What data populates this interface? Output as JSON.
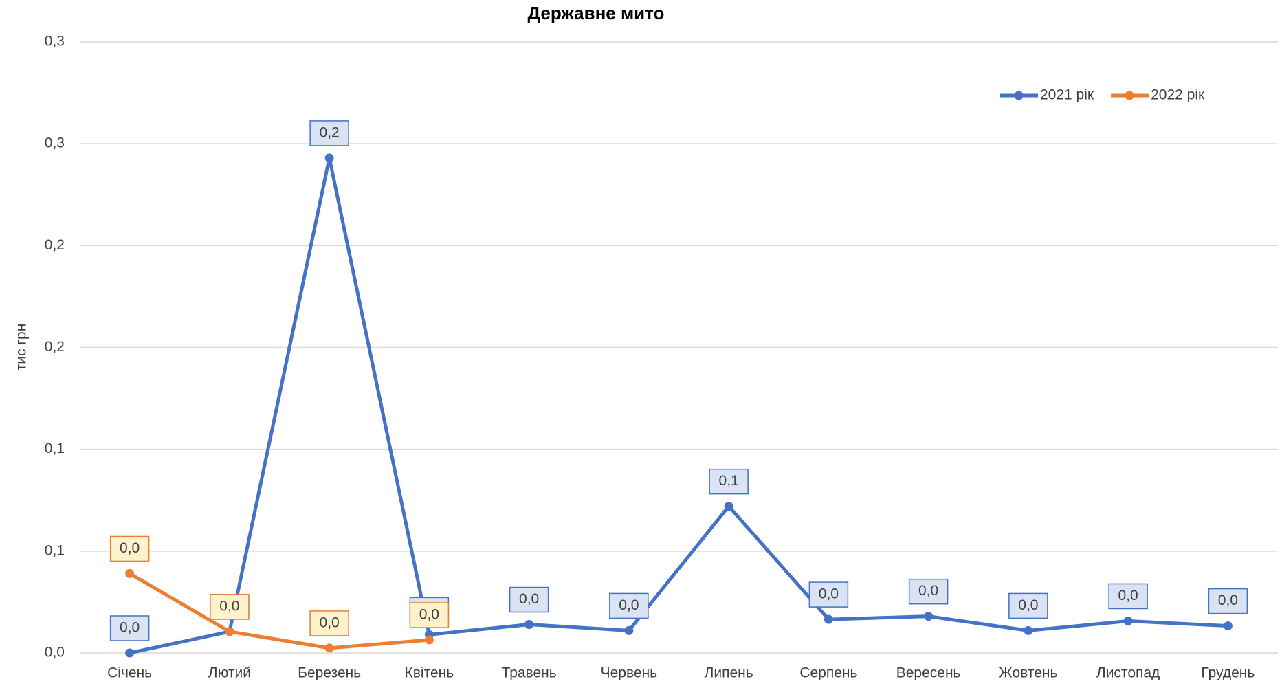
{
  "chart_data": {
    "type": "line",
    "title": "Державне мито",
    "y_label": "тис грн",
    "categories": [
      "Січень",
      "Лютий",
      "Березень",
      "Квітень",
      "Травень",
      "Червень",
      "Липень",
      "Серпень",
      "Вересень",
      "Жовтень",
      "Листопад",
      "Грудень"
    ],
    "series": [
      {
        "name": "2021 рік",
        "color": "#4472c4",
        "label_fill": "#dae3f3",
        "values": [
          0.0,
          0.0105,
          0.243,
          0.009,
          0.014,
          0.011,
          0.072,
          0.0165,
          0.018,
          0.011,
          0.0157,
          0.0133
        ],
        "value_labels": [
          "0,0",
          "0,0",
          "0,2",
          "0,0",
          "0,0",
          "0,0",
          "0,1",
          "0,0",
          "0,0",
          "0,0",
          "0,0",
          "0,0"
        ]
      },
      {
        "name": "2022 рік",
        "color": "#ed7d31",
        "label_fill": "#fff2cc",
        "values": [
          0.039,
          0.0105,
          0.0024,
          0.0064,
          null,
          null,
          null,
          null,
          null,
          null,
          null,
          null
        ],
        "value_labels": [
          "0,0",
          "0,0",
          "0,0",
          "0,0",
          null,
          null,
          null,
          null,
          null,
          null,
          null,
          null
        ]
      }
    ],
    "ylim": [
      0,
      0.3
    ],
    "yticks": [
      {
        "value": 0,
        "label": "0,0"
      },
      {
        "value": 0.05,
        "label": "0,1"
      },
      {
        "value": 0.1,
        "label": "0,1"
      },
      {
        "value": 0.15,
        "label": "0,2"
      },
      {
        "value": 0.2,
        "label": "0,2"
      },
      {
        "value": 0.25,
        "label": "0,3"
      },
      {
        "value": 0.3,
        "label": "0,3"
      }
    ],
    "grid": true,
    "legend": "top-right"
  }
}
